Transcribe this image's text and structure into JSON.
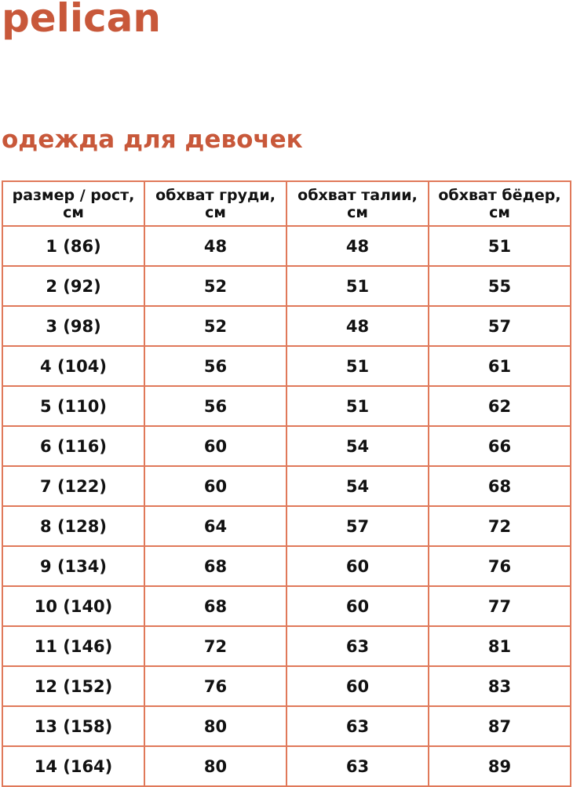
{
  "brand": {
    "logo": "pelican",
    "color": "#c8583a"
  },
  "title": "одежда для девочек",
  "table": {
    "headers": [
      "размер / рост, см",
      "обхват груди, см",
      "обхват талии, см",
      "обхват бёдер, см"
    ],
    "rows": [
      [
        "1 (86)",
        "48",
        "48",
        "51"
      ],
      [
        "2 (92)",
        "52",
        "51",
        "55"
      ],
      [
        "3 (98)",
        "52",
        "48",
        "57"
      ],
      [
        "4 (104)",
        "56",
        "51",
        "61"
      ],
      [
        "5 (110)",
        "56",
        "51",
        "62"
      ],
      [
        "6 (116)",
        "60",
        "54",
        "66"
      ],
      [
        "7 (122)",
        "60",
        "54",
        "68"
      ],
      [
        "8 (128)",
        "64",
        "57",
        "72"
      ],
      [
        "9 (134)",
        "68",
        "60",
        "76"
      ],
      [
        "10 (140)",
        "68",
        "60",
        "77"
      ],
      [
        "11 (146)",
        "72",
        "63",
        "81"
      ],
      [
        "12 (152)",
        "76",
        "60",
        "83"
      ],
      [
        "13 (158)",
        "80",
        "63",
        "87"
      ],
      [
        "14 (164)",
        "80",
        "63",
        "89"
      ]
    ],
    "border_color": "#e0795a"
  }
}
